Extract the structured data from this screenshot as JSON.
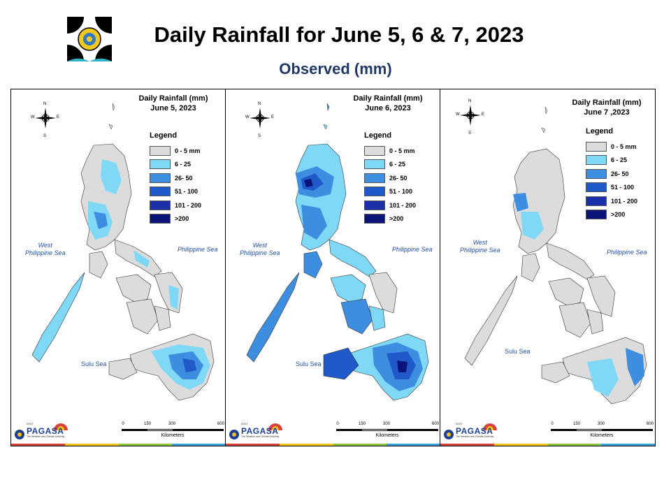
{
  "header": {
    "title": "Daily Rainfall for June 5, 6 & 7, 2023",
    "subtitle": "Observed (mm)"
  },
  "legend": {
    "title": "Legend",
    "items": [
      {
        "label": "0 - 5 mm",
        "color": "#dcdcdc"
      },
      {
        "label": "6 - 25",
        "color": "#7fd8f5"
      },
      {
        "label": "26- 50",
        "color": "#3d8ee0"
      },
      {
        "label": "51 - 100",
        "color": "#2059c9"
      },
      {
        "label": "101 - 200",
        "color": "#1a2fa8"
      },
      {
        "label": ">200",
        "color": "#0b1478"
      }
    ]
  },
  "labels": {
    "west_sea_line1": "West",
    "west_sea_line2": "Philippine Sea",
    "philippine_sea": "Philippine Sea",
    "sulu_sea": "Sulu Sea",
    "kilometers": "Kilometers",
    "scale_ticks": [
      "0",
      "150",
      "300",
      "600"
    ],
    "compass": {
      "n": "N",
      "s": "S",
      "e": "E",
      "w": "W"
    },
    "agency": "PAGASA",
    "agency_top": "DOST",
    "agency_tagline": "The Weather and Climate Authority"
  },
  "panels": [
    {
      "title_line1": "Daily Rainfall (mm)",
      "title_line2": "June 5, 2023"
    },
    {
      "title_line1": "Daily Rainfall (mm)",
      "title_line2": "June 6, 2023"
    },
    {
      "title_line1": "Daily Rainfall (mm)",
      "title_line2": "June 7 ,2023"
    }
  ],
  "colors": {
    "title_blue": "#1f3864",
    "sea_label": "#1f4e9e",
    "strip": [
      "#d9423c",
      "#f0c419",
      "#8cc63f",
      "#3aa0d8"
    ]
  }
}
